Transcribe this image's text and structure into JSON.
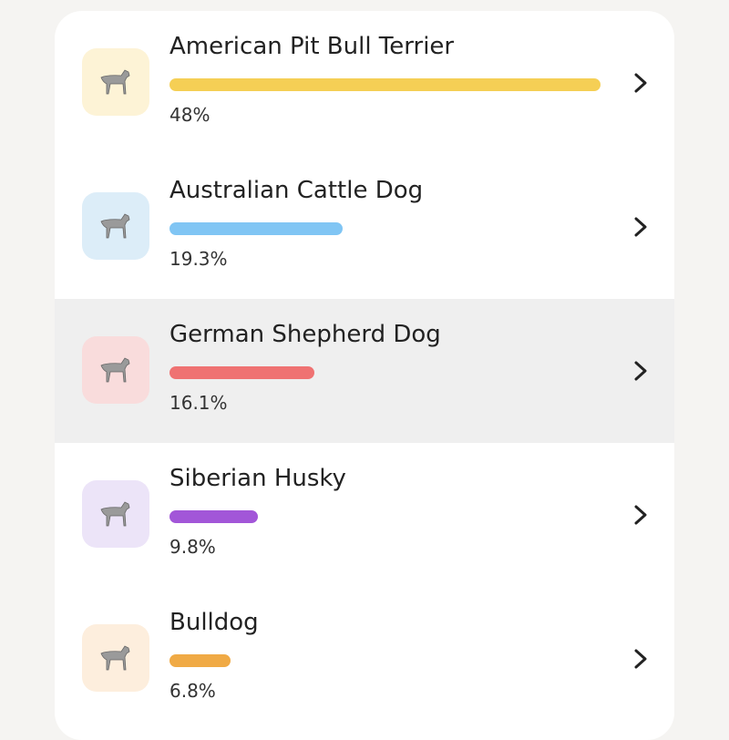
{
  "breeds": [
    {
      "name": "American Pit Bull Terrier",
      "percent": 48,
      "percent_label": "48%",
      "color": "#f5cf55"
    },
    {
      "name": "Australian Cattle Dog",
      "percent": 19.3,
      "percent_label": "19.3%",
      "color": "#80c5f4"
    },
    {
      "name": "German Shepherd Dog",
      "percent": 16.1,
      "percent_label": "16.1%",
      "color": "#ef7272"
    },
    {
      "name": "Siberian Husky",
      "percent": 9.8,
      "percent_label": "9.8%",
      "color": "#a256d8"
    },
    {
      "name": "Bulldog",
      "percent": 6.8,
      "percent_label": "6.8%",
      "color": "#f0aa45"
    }
  ]
}
